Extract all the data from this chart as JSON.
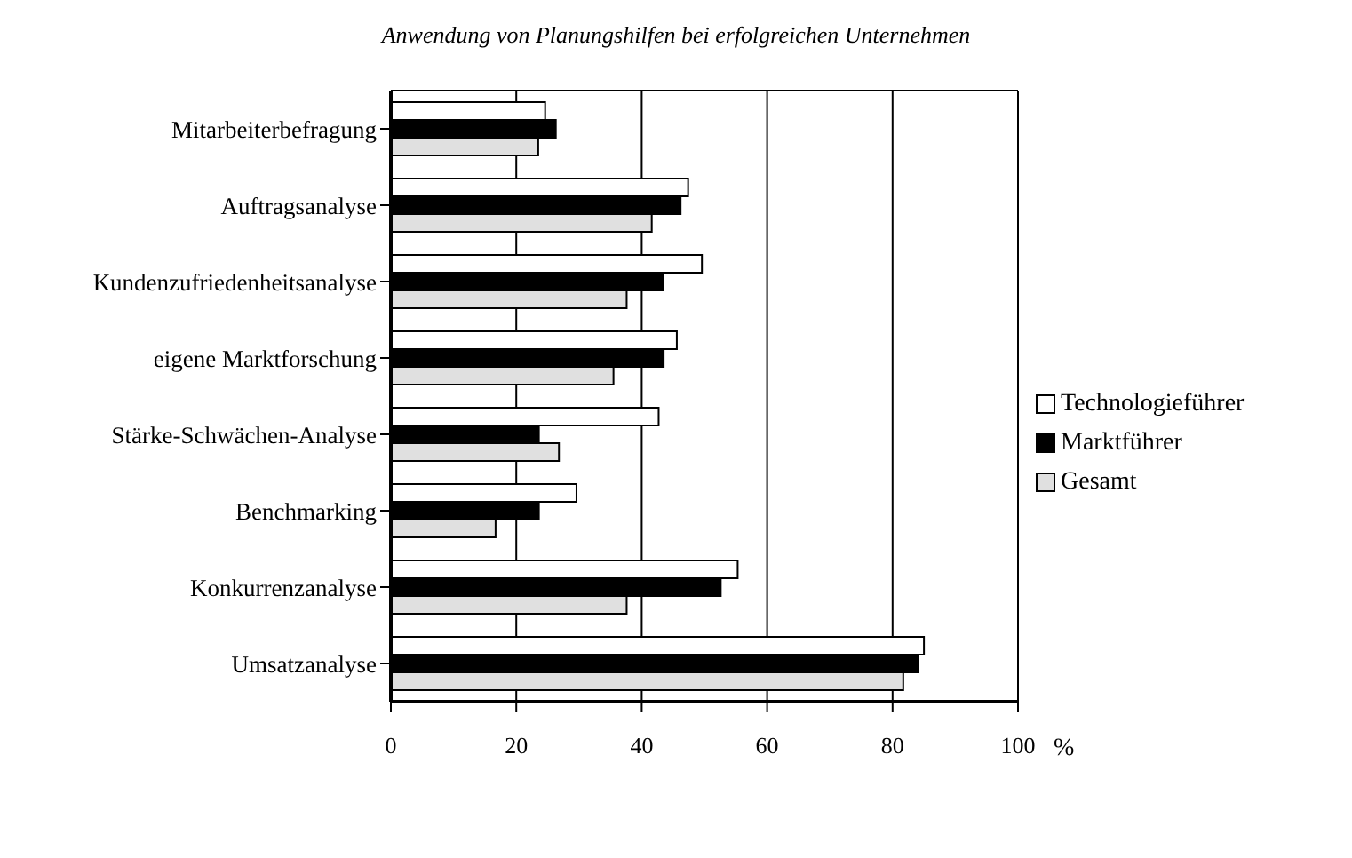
{
  "chart_data": {
    "type": "bar",
    "orientation": "horizontal",
    "title": "Anwendung von Planungshilfen bei erfolgreichen Unternehmen",
    "xlabel": "%",
    "categories": [
      "Mitarbeiterbefragung",
      "Auftragsanalyse",
      "Kundenzufriedenheitsanalyse",
      "eigene Marktforschung",
      "Stärke-Schwächen-Analyse",
      "Benchmarking",
      "Konkurrenzanalyse",
      "Umsatzanalyse"
    ],
    "series": [
      {
        "name": "Technologieführer",
        "color": "#ffffff",
        "values": [
          24.6,
          47.4,
          49.6,
          45.6,
          42.7,
          29.6,
          55.3,
          85
        ]
      },
      {
        "name": "Marktführer",
        "color": "#000000",
        "values": [
          26.3,
          46.2,
          43.4,
          43.5,
          23.6,
          23.6,
          52.6,
          84.1
        ]
      },
      {
        "name": "Gesamt",
        "color": "#e0e0e0",
        "values": [
          23.5,
          41.6,
          37.6,
          35.5,
          26.8,
          16.7,
          37.6,
          81.7
        ]
      }
    ],
    "xlim": [
      0,
      100
    ],
    "xticks": [
      0,
      20,
      40,
      60,
      80,
      100
    ],
    "grid": "x",
    "legend": "right"
  }
}
